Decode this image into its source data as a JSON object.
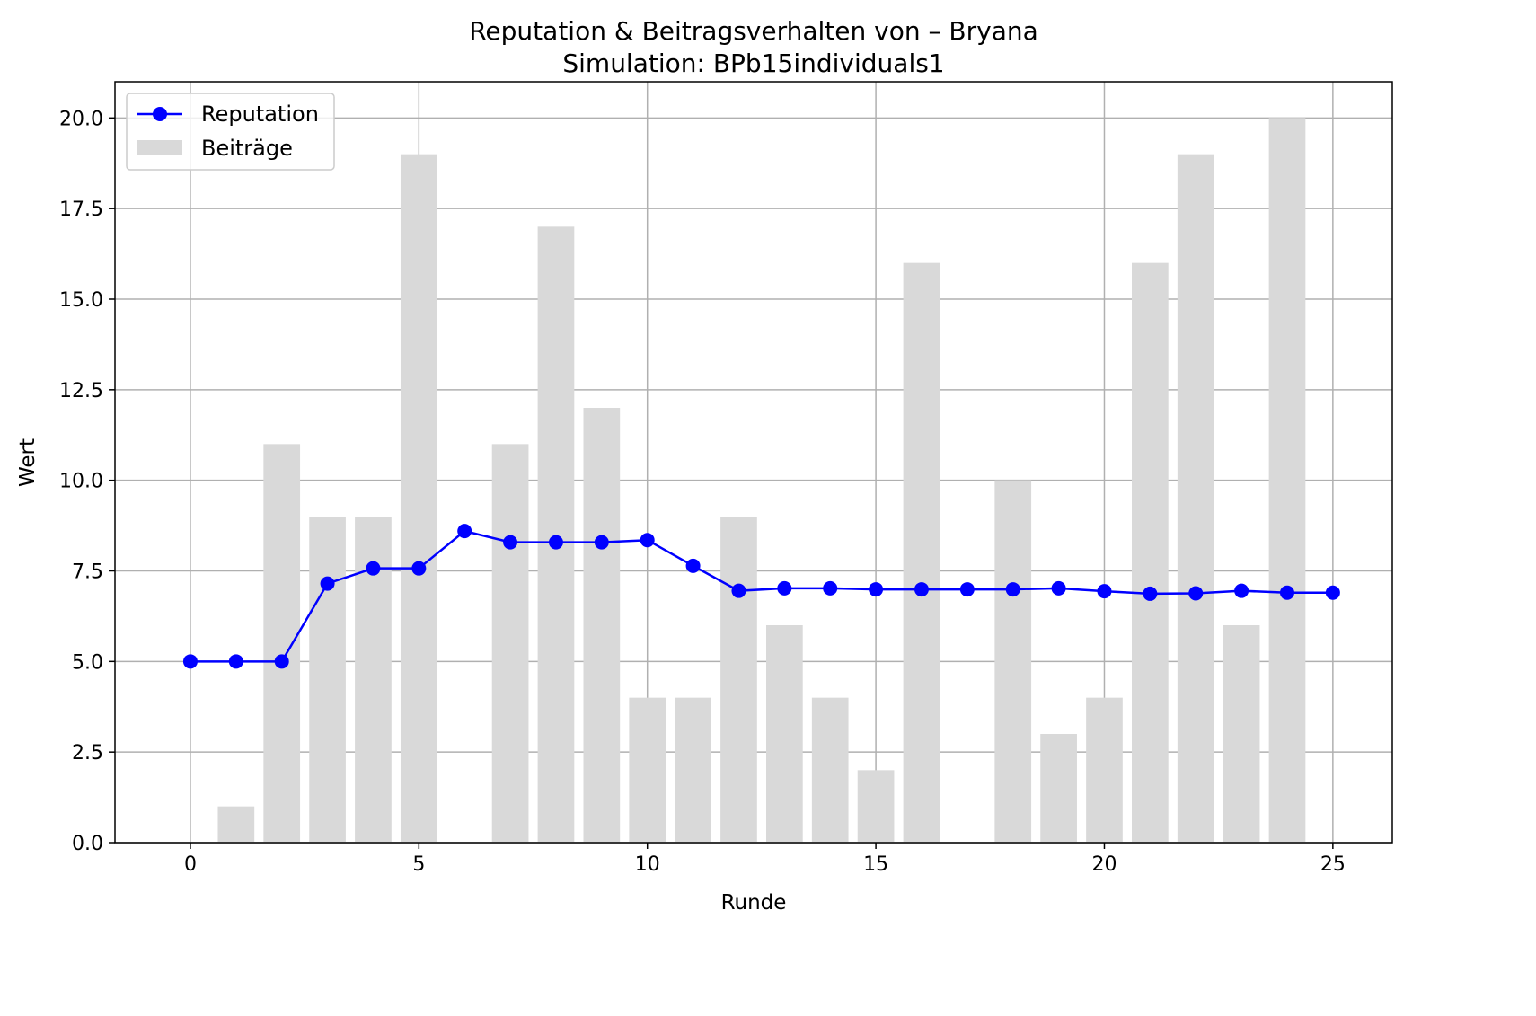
{
  "chart_data": {
    "type": "bar+line",
    "title": "Reputation & Beitragsverhalten von – Bryana",
    "subtitle": "Simulation: BPb15individuals1",
    "xlabel": "Runde",
    "ylabel": "Wert",
    "xlim": [
      -1.65,
      26.3
    ],
    "ylim": [
      0,
      21
    ],
    "xticks": [
      0,
      5,
      10,
      15,
      20,
      25
    ],
    "yticks": [
      0.0,
      2.5,
      5.0,
      7.5,
      10.0,
      12.5,
      15.0,
      17.5,
      20.0
    ],
    "xtick_labels": [
      "0",
      "5",
      "10",
      "15",
      "20",
      "25"
    ],
    "ytick_labels": [
      "0.0",
      "2.5",
      "5.0",
      "7.5",
      "10.0",
      "12.5",
      "15.0",
      "17.5",
      "20.0"
    ],
    "grid": true,
    "legend_position": "top-left",
    "x": [
      0,
      1,
      2,
      3,
      4,
      5,
      6,
      7,
      8,
      9,
      10,
      11,
      12,
      13,
      14,
      15,
      16,
      17,
      18,
      19,
      20,
      21,
      22,
      23,
      24,
      25
    ],
    "series": [
      {
        "name": "Reputation",
        "kind": "line",
        "color": "#0000ff",
        "values": [
          5.0,
          5.0,
          5.0,
          7.15,
          7.57,
          7.57,
          8.6,
          8.29,
          8.29,
          8.29,
          8.35,
          7.64,
          6.95,
          7.02,
          7.02,
          6.99,
          6.99,
          6.99,
          6.99,
          7.02,
          6.94,
          6.87,
          6.88,
          6.95,
          6.9,
          6.9
        ]
      },
      {
        "name": "Beiträge",
        "kind": "bar",
        "color": "#d9d9d9",
        "values": [
          0,
          1,
          11,
          9,
          9,
          19,
          0,
          11,
          17,
          12,
          4,
          4,
          9,
          6,
          4,
          2,
          16,
          0,
          10,
          3,
          4,
          16,
          19,
          6,
          20,
          0
        ]
      }
    ]
  }
}
